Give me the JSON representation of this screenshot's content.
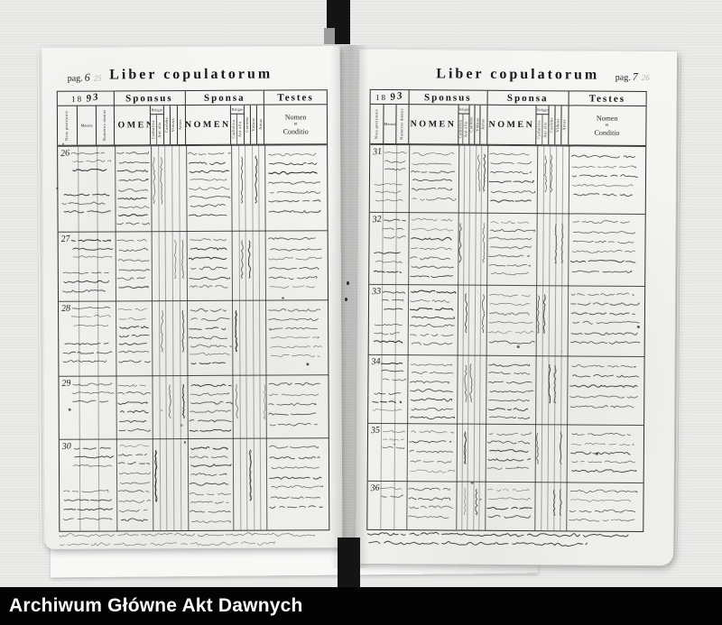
{
  "colors": {
    "background": "#e9e9e8",
    "paper": "#f4f3f0",
    "ink": "#1c1c1c",
    "footer_bg": "#030303",
    "footer_text": "#fcfcfc"
  },
  "scan": {
    "footer_text": "Archiwum Główne Akt Dawnych"
  },
  "book": {
    "title": "Liber copulatorum",
    "columns": {
      "sponsus": "Sponsus",
      "sponsa": "Sponsa",
      "testes": "Testes",
      "nomen": "NOMEN",
      "religio": "Religio",
      "catholica": "Catholica",
      "aut_alia": "Aut alia",
      "caelebs": "Caelebs",
      "viduus": "Viduus",
      "aetas": "Aetas",
      "testes_nomen": "Nomen",
      "testes_et": "et",
      "testes_conditio": "Conditio",
      "nrus_positionis": "Nrus positionis",
      "mensis": "Mensis",
      "numerus_domus": "Numerus domus"
    },
    "pages": [
      {
        "side": "left",
        "pag_label": "pag.",
        "pag_number": "6",
        "pencil_number": "25",
        "year_printed": "18",
        "year_written": "93",
        "entries": [
          "26",
          "27",
          "28",
          "29",
          "30"
        ]
      },
      {
        "side": "right",
        "pag_label": "pag.",
        "pag_number": "7",
        "pencil_number": "26",
        "year_printed": "18",
        "year_written": "93",
        "entries": [
          "31",
          "32",
          "33",
          "34",
          "35",
          "36"
        ]
      }
    ]
  }
}
